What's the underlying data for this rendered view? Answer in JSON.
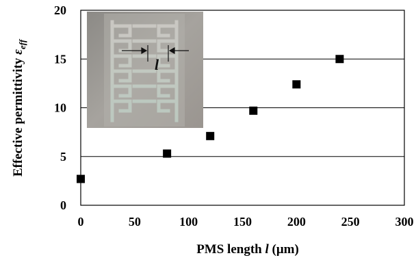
{
  "chart_data": {
    "type": "scatter",
    "xlabel": "PMS length l (μm)",
    "xlabel_parts": {
      "prefix": "PMS length ",
      "var": "l",
      "suffix": " (μm)"
    },
    "ylabel": "Effective permittivity εeff",
    "ylabel_parts": {
      "prefix": "Effective permittivity ",
      "var": "ε",
      "sub": "eff"
    },
    "xlim": [
      0,
      300
    ],
    "ylim": [
      0,
      20
    ],
    "xticks": [
      "0",
      "50",
      "100",
      "150",
      "200",
      "250",
      "300"
    ],
    "yticks": [
      "0",
      "5",
      "10",
      "15",
      "20"
    ],
    "grid": {
      "horizontal": true,
      "vertical": false
    },
    "points": [
      {
        "x": 0,
        "y": 2.7
      },
      {
        "x": 80,
        "y": 5.3
      },
      {
        "x": 120,
        "y": 7.1
      },
      {
        "x": 160,
        "y": 9.7
      },
      {
        "x": 200,
        "y": 12.4
      },
      {
        "x": 240,
        "y": 15.0
      }
    ],
    "marker_color": "#000000",
    "inset": {
      "annotation": "l"
    }
  }
}
